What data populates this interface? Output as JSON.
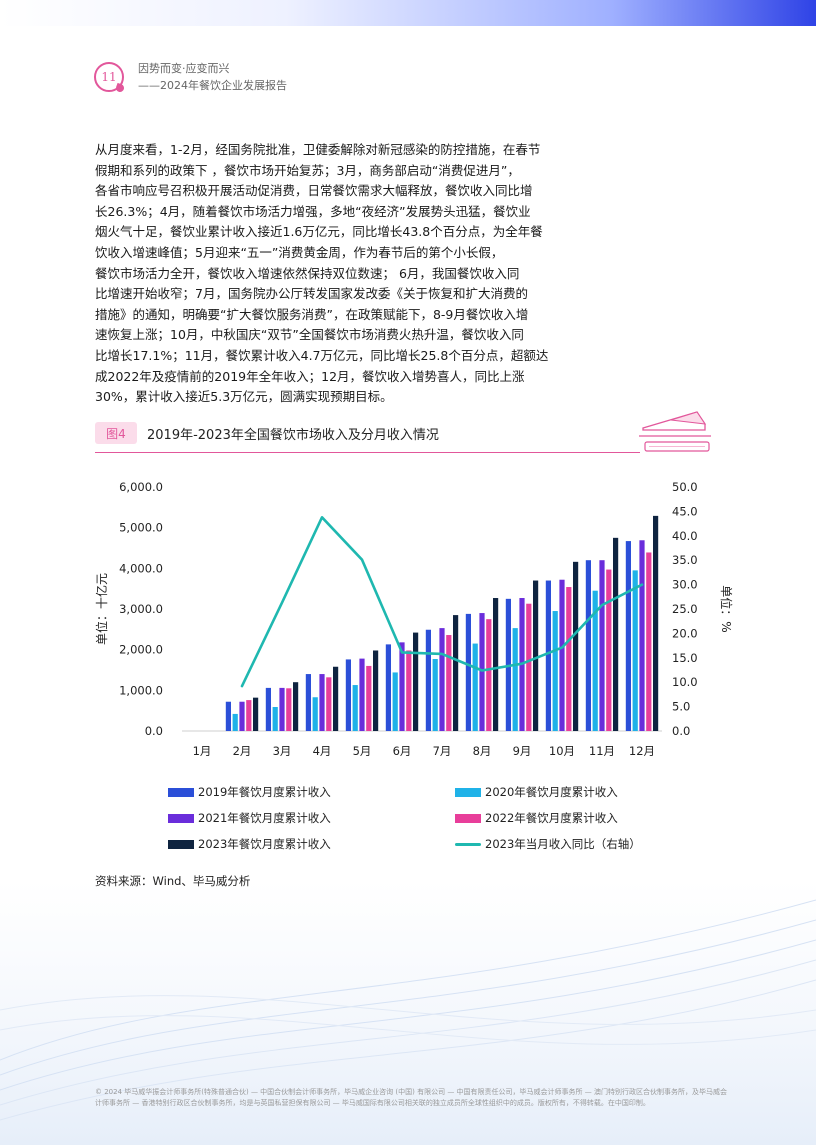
{
  "header": {
    "page_number": "11",
    "line1": "因势而变·应变而兴",
    "line2": "——2024年餐饮企业发展报告"
  },
  "body_lines": [
    "从月度来看，1-2月，经国务院批准，卫健委解除对新冠感染的防控措施，在春节",
    "假期和系列的政策下  ，餐饮市场开始复苏；3月，商务部启动“消费促进月”，",
    "各省市响应号召积极开展活动促消费，日常餐饮需求大幅释放，餐饮收入同比增",
    "长26.3%；4月，随着餐饮市场活力增强，多地“夜经济”发展势头迅猛，餐饮业",
    "烟火气十足，餐饮业累计收入接近1.6万亿元，同比增长43.8个百分点，为全年餐",
    "饮收入增速峰值；5月迎来“五一”消费黄金周，作为春节后的第个小长假，",
    "餐饮市场活力全开，餐饮收入增速依然保持双位数速；   6月，我国餐饮收入同",
    "比增速开始收窄；7月，国务院办公厅转发国家发改委《关于恢复和扩大消费的",
    "措施》的通知，明确要“扩大餐饮服务消费”，在政策赋能下，8-9月餐饮收入增",
    "速恢复上涨；10月，中秋国庆“双节”全国餐饮市场消费火热升温，餐饮收入同",
    "比增长17.1%；11月，餐饮累计收入4.7万亿元，同比增长25.8个百分点，超额达",
    "成2022年及疫情前的2019年全年收入；12月，餐饮收入增势喜人，同比上涨",
    "30%，累计收入接近5.3万亿元，圆满实现预期目标。"
  ],
  "figure": {
    "tag": "图4",
    "title": "2019年-2023年全国餐饮市场收入及分月收入情况"
  },
  "chart_data": {
    "type": "bar",
    "categories": [
      "1月",
      "2月",
      "3月",
      "4月",
      "5月",
      "6月",
      "7月",
      "8月",
      "9月",
      "10月",
      "11月",
      "12月"
    ],
    "ylabel": "单位：十亿元",
    "y2label": "单位：%",
    "ylim": [
      0,
      6000
    ],
    "y2lim": [
      0,
      50
    ],
    "y_ticks": [
      "0.0",
      "1,000.0",
      "2,000.0",
      "3,000.0",
      "4,000.0",
      "5,000.0",
      "6,000.0"
    ],
    "y2_ticks": [
      "0.0",
      "5.0",
      "10.0",
      "15.0",
      "20.0",
      "25.0",
      "30.0",
      "35.0",
      "40.0",
      "45.0",
      "50.0"
    ],
    "series": [
      {
        "name": "2019年餐饮月度累计收入",
        "color": "#2b4fd8",
        "values": [
          null,
          720,
          1060,
          1400,
          1760,
          2130,
          2490,
          2880,
          3250,
          3700,
          4200,
          4670
        ]
      },
      {
        "name": "2020年餐饮月度累计收入",
        "color": "#1fb2e8",
        "values": [
          null,
          420,
          590,
          830,
          1130,
          1440,
          1770,
          2150,
          2530,
          2950,
          3450,
          3950
        ]
      },
      {
        "name": "2021年餐饮月度累计收入",
        "color": "#6a2ddb",
        "values": [
          null,
          720,
          1060,
          1400,
          1780,
          2180,
          2530,
          2900,
          3270,
          3720,
          4200,
          4690
        ]
      },
      {
        "name": "2022年餐饮月度累计收入",
        "color": "#e83e9a",
        "values": [
          null,
          760,
          1050,
          1320,
          1600,
          1980,
          2360,
          2750,
          3130,
          3540,
          3970,
          4390
        ]
      },
      {
        "name": "2023年餐饮月度累计收入",
        "color": "#0f2440",
        "values": [
          null,
          820,
          1200,
          1580,
          1980,
          2420,
          2850,
          3270,
          3700,
          4160,
          4750,
          5290
        ]
      }
    ],
    "line_series": {
      "name": "2023年当月收入同比（右轴）",
      "color": "#1fb8b0",
      "axis": "right",
      "values": [
        null,
        9.2,
        26.3,
        43.8,
        35.1,
        16.1,
        15.8,
        12.4,
        13.8,
        17.1,
        25.8,
        30.0
      ]
    },
    "legend_position": "bottom",
    "grid": false
  },
  "source": "资料来源：Wind、毕马威分析",
  "footer": "© 2024 毕马威华振会计师事务所(特殊普通合伙) — 中国合伙制会计师事务所，毕马威企业咨询 (中国) 有限公司 — 中国有限责任公司，毕马威会计师事务所 — 澳门特别行政区合伙制事务所，及毕马威会计师事务所 — 香港特别行政区合伙制事务所，均是与英国私营担保有限公司 — 毕马威国际有限公司相关联的独立成员所全球性组织中的成员。版权所有，不得转载。在中国印制。"
}
